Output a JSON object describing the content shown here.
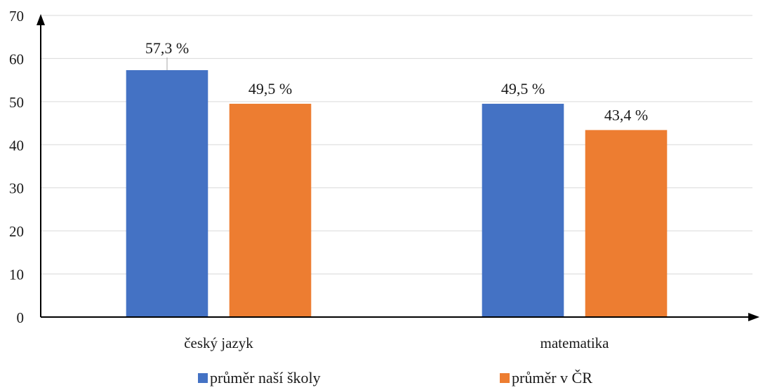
{
  "chart_data": {
    "type": "bar",
    "title": "",
    "xlabel": "",
    "ylabel": "",
    "ylim": [
      0,
      70
    ],
    "yticks": [
      0,
      10,
      20,
      30,
      40,
      50,
      60,
      70
    ],
    "grid": true,
    "legend_position": "bottom",
    "categories": [
      "český jazyk",
      "matematika"
    ],
    "series": [
      {
        "name": "průměr naší školy",
        "color": "#4472C4",
        "values": [
          57.3,
          49.5
        ],
        "labels": [
          "57,3 %",
          "49,5 %"
        ]
      },
      {
        "name": "průměr v ČR",
        "color": "#ED7D31",
        "values": [
          49.5,
          43.4
        ],
        "labels": [
          "49,5 %",
          "43,4 %"
        ]
      }
    ]
  }
}
